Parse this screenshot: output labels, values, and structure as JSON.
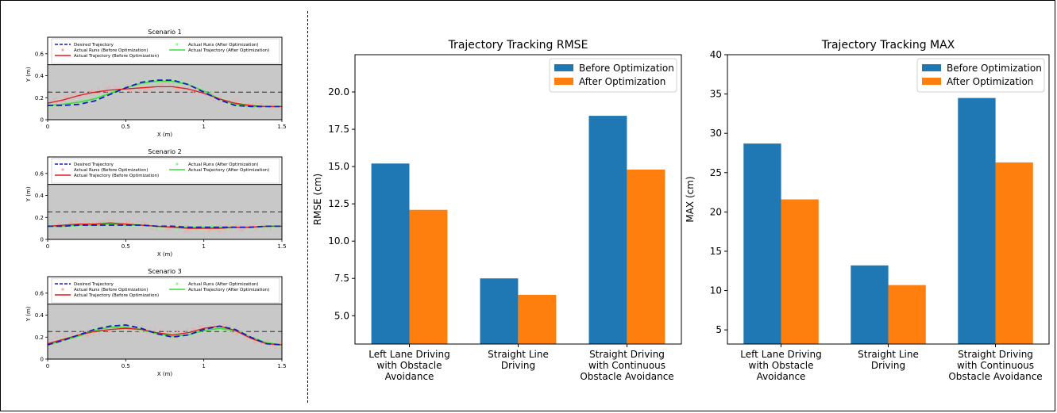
{
  "chart_data": [
    {
      "type": "line",
      "title": "Scenario 1",
      "xlabel": "X (m)",
      "ylabel": "Y (m)",
      "xlim": [
        0,
        1.5
      ],
      "ylim": [
        0,
        0.75
      ],
      "x_ticks": [
        "0",
        "0.5",
        "1",
        "1.5"
      ],
      "y_ticks": [
        "0",
        "0.2",
        "0.4",
        "0.6"
      ],
      "shaded_band": [
        0,
        0.5
      ],
      "reference_line_y": 0.25,
      "legend": [
        "Desired Trajectory",
        "Actual Runs (Before Optimization)",
        "Actual Trajectory (Before Optimization)",
        "Actual Runs (After Optimization)",
        "Actual Trajectory (After Optimization)"
      ],
      "x": [
        0,
        0.1,
        0.2,
        0.3,
        0.4,
        0.5,
        0.6,
        0.7,
        0.8,
        0.9,
        1.0,
        1.1,
        1.2,
        1.3,
        1.4,
        1.5
      ],
      "series": [
        {
          "name": "Desired Trajectory",
          "values": [
            0.13,
            0.13,
            0.14,
            0.17,
            0.23,
            0.29,
            0.34,
            0.36,
            0.36,
            0.32,
            0.25,
            0.18,
            0.13,
            0.12,
            0.12,
            0.12
          ]
        },
        {
          "name": "Actual Trajectory (Before Optimization)",
          "values": [
            0.15,
            0.18,
            0.22,
            0.25,
            0.27,
            0.28,
            0.29,
            0.3,
            0.3,
            0.28,
            0.24,
            0.19,
            0.15,
            0.13,
            0.12,
            0.12
          ]
        },
        {
          "name": "Actual Trajectory (After Optimization)",
          "values": [
            0.13,
            0.14,
            0.16,
            0.19,
            0.24,
            0.29,
            0.33,
            0.35,
            0.35,
            0.32,
            0.26,
            0.19,
            0.14,
            0.12,
            0.12,
            0.12
          ]
        }
      ]
    },
    {
      "type": "line",
      "title": "Scenario 2",
      "xlabel": "X (m)",
      "ylabel": "Y (m)",
      "xlim": [
        0,
        1.5
      ],
      "ylim": [
        0,
        0.75
      ],
      "x_ticks": [
        "0",
        "0.5",
        "1",
        "1.5"
      ],
      "y_ticks": [
        "0",
        "0.2",
        "0.4",
        "0.6"
      ],
      "shaded_band": [
        0,
        0.5
      ],
      "reference_line_y": 0.25,
      "legend": [
        "Desired Trajectory",
        "Actual Runs (Before Optimization)",
        "Actual Trajectory (Before Optimization)",
        "Actual Runs (After Optimization)",
        "Actual Trajectory (After Optimization)"
      ],
      "x": [
        0,
        0.1,
        0.2,
        0.3,
        0.4,
        0.5,
        0.6,
        0.7,
        0.8,
        0.9,
        1.0,
        1.1,
        1.2,
        1.3,
        1.4,
        1.5
      ],
      "series": [
        {
          "name": "Desired Trajectory",
          "values": [
            0.12,
            0.12,
            0.13,
            0.13,
            0.13,
            0.13,
            0.13,
            0.12,
            0.12,
            0.11,
            0.11,
            0.11,
            0.11,
            0.11,
            0.12,
            0.12
          ]
        },
        {
          "name": "Actual Trajectory (Before Optimization)",
          "values": [
            0.12,
            0.13,
            0.14,
            0.14,
            0.15,
            0.14,
            0.13,
            0.12,
            0.11,
            0.1,
            0.1,
            0.1,
            0.11,
            0.11,
            0.12,
            0.12
          ]
        },
        {
          "name": "Actual Trajectory (After Optimization)",
          "values": [
            0.12,
            0.12,
            0.13,
            0.13,
            0.14,
            0.13,
            0.13,
            0.12,
            0.11,
            0.11,
            0.11,
            0.11,
            0.11,
            0.11,
            0.12,
            0.12
          ]
        }
      ]
    },
    {
      "type": "line",
      "title": "Scenario 3",
      "xlabel": "X (m)",
      "ylabel": "Y (m)",
      "xlim": [
        0,
        1.5
      ],
      "ylim": [
        0,
        0.75
      ],
      "x_ticks": [
        "0",
        "0.5",
        "1",
        "1.5"
      ],
      "y_ticks": [
        "0",
        "0.2",
        "0.4",
        "0.6"
      ],
      "shaded_band": [
        0,
        0.5
      ],
      "reference_line_y": 0.25,
      "legend": [
        "Desired Trajectory",
        "Actual Runs (Before Optimization)",
        "Actual Trajectory (Before Optimization)",
        "Actual Runs (After Optimization)",
        "Actual Trajectory (After Optimization)"
      ],
      "x": [
        0,
        0.1,
        0.2,
        0.3,
        0.4,
        0.5,
        0.6,
        0.7,
        0.8,
        0.9,
        1.0,
        1.1,
        1.2,
        1.3,
        1.4,
        1.5
      ],
      "series": [
        {
          "name": "Desired Trajectory",
          "values": [
            0.13,
            0.17,
            0.22,
            0.27,
            0.3,
            0.31,
            0.28,
            0.23,
            0.2,
            0.22,
            0.27,
            0.3,
            0.27,
            0.2,
            0.14,
            0.13
          ]
        },
        {
          "name": "Actual Trajectory (Before Optimization)",
          "values": [
            0.14,
            0.18,
            0.22,
            0.25,
            0.27,
            0.28,
            0.27,
            0.24,
            0.22,
            0.24,
            0.28,
            0.3,
            0.26,
            0.19,
            0.14,
            0.13
          ]
        },
        {
          "name": "Actual Trajectory (After Optimization)",
          "values": [
            0.13,
            0.17,
            0.21,
            0.26,
            0.29,
            0.29,
            0.27,
            0.23,
            0.21,
            0.22,
            0.26,
            0.28,
            0.26,
            0.2,
            0.15,
            0.13
          ]
        }
      ]
    },
    {
      "type": "bar",
      "title": "Trajectory Tracking RMSE",
      "ylabel": "RMSE (cm)",
      "xlabel": "",
      "ylim": [
        3.1,
        22.5
      ],
      "y_ticks": [
        "5.0",
        "7.5",
        "10.0",
        "12.5",
        "15.0",
        "17.5",
        "20.0"
      ],
      "categories": [
        [
          "Left Lane Driving",
          "with Obstacle",
          "Avoidance"
        ],
        [
          "Straight Line",
          "Driving"
        ],
        [
          "Straight Driving",
          "with Continuous",
          "Obstacle Avoidance"
        ]
      ],
      "legend_position": "top-right",
      "series": [
        {
          "name": "Before Optimization",
          "color": "#1f77b4",
          "values": [
            15.2,
            7.5,
            18.4
          ]
        },
        {
          "name": "After Optimization",
          "color": "#ff7f0e",
          "values": [
            12.1,
            6.4,
            14.8
          ]
        }
      ]
    },
    {
      "type": "bar",
      "title": "Trajectory Tracking MAX",
      "ylabel": "MAX (cm)",
      "xlabel": "",
      "ylim": [
        3.2,
        40
      ],
      "y_ticks": [
        "5",
        "10",
        "15",
        "20",
        "25",
        "30",
        "35",
        "40"
      ],
      "categories": [
        [
          "Left Lane Driving",
          "with Obstacle",
          "Avoidance"
        ],
        [
          "Straight Line",
          "Driving"
        ],
        [
          "Straight Driving",
          "with Continuous",
          "Obstacle Avoidance"
        ]
      ],
      "legend_position": "top-right",
      "series": [
        {
          "name": "Before Optimization",
          "color": "#1f77b4",
          "values": [
            28.7,
            13.2,
            34.5
          ]
        },
        {
          "name": "After Optimization",
          "color": "#ff7f0e",
          "values": [
            21.6,
            10.7,
            26.3
          ]
        }
      ]
    }
  ],
  "colors": {
    "desired": "#1a1acc",
    "before_line": "#e41a1c",
    "before_runs": "#f4a6a6",
    "after_line": "#3ddc3d",
    "after_runs": "#9cef9c",
    "band": "#c8c8c8"
  }
}
